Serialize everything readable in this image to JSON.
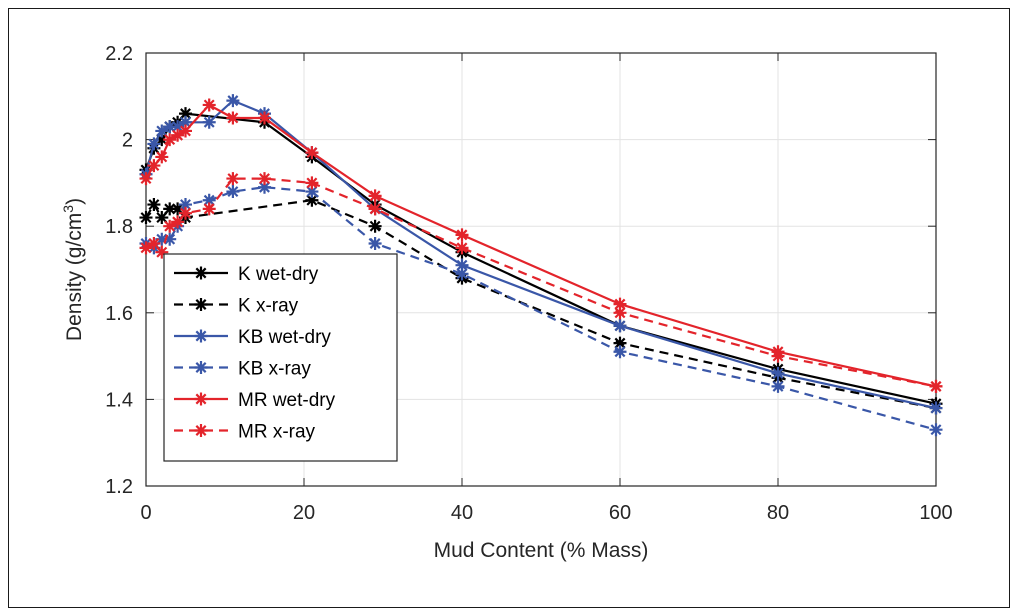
{
  "chart_data": {
    "type": "line",
    "title": "",
    "xlabel": "Mud Content (% Mass)",
    "ylabel": "Density (g/cm",
    "ylabel_sup": "3",
    "ylabel_close": ")",
    "xlim": [
      0,
      100
    ],
    "ylim": [
      1.2,
      2.2
    ],
    "xticks": [
      0,
      20,
      40,
      60,
      80,
      100
    ],
    "xtick_labels": [
      "0",
      "20",
      "40",
      "60",
      "80",
      "100"
    ],
    "yticks": [
      1.2,
      1.4,
      1.6,
      1.8,
      2.0,
      2.2
    ],
    "ytick_labels": [
      "1.2",
      "1.4",
      "1.6",
      "1.8",
      "2",
      "2.2"
    ],
    "grid": true,
    "legend_position": "lower-left",
    "series": [
      {
        "name": "K wet-dry",
        "color": "#000000",
        "dash": "solid",
        "x": [
          0,
          1,
          2,
          3,
          4,
          5,
          15,
          21,
          29,
          40,
          60,
          80,
          100
        ],
        "y": [
          1.93,
          1.98,
          2.0,
          2.03,
          2.04,
          2.06,
          2.04,
          1.96,
          1.85,
          1.74,
          1.57,
          1.47,
          1.39
        ]
      },
      {
        "name": "K x-ray",
        "color": "#000000",
        "dash": "dashed",
        "x": [
          0,
          1,
          2,
          3,
          4,
          5,
          21,
          29,
          40,
          60,
          80,
          100
        ],
        "y": [
          1.82,
          1.85,
          1.82,
          1.84,
          1.84,
          1.82,
          1.86,
          1.8,
          1.68,
          1.53,
          1.45,
          1.38
        ]
      },
      {
        "name": "KB wet-dry",
        "color": "#3a57a8",
        "dash": "solid",
        "x": [
          0,
          1,
          2,
          3,
          4,
          5,
          8,
          11,
          15,
          21,
          29,
          40,
          60,
          80,
          100
        ],
        "y": [
          1.92,
          1.99,
          2.02,
          2.03,
          2.03,
          2.04,
          2.04,
          2.09,
          2.06,
          1.97,
          1.84,
          1.71,
          1.57,
          1.46,
          1.38
        ]
      },
      {
        "name": "KB x-ray",
        "color": "#3a57a8",
        "dash": "dashed",
        "x": [
          0,
          1,
          2,
          3,
          4,
          5,
          8,
          11,
          15,
          21,
          29,
          40,
          60,
          80,
          100
        ],
        "y": [
          1.76,
          1.75,
          1.77,
          1.77,
          1.8,
          1.85,
          1.86,
          1.88,
          1.89,
          1.88,
          1.76,
          1.69,
          1.51,
          1.43,
          1.33
        ]
      },
      {
        "name": "MR wet-dry",
        "color": "#e3242b",
        "dash": "solid",
        "x": [
          0,
          1,
          2,
          3,
          4,
          5,
          8,
          11,
          15,
          21,
          29,
          40,
          60,
          80,
          100
        ],
        "y": [
          1.91,
          1.94,
          1.96,
          2.0,
          2.01,
          2.02,
          2.08,
          2.05,
          2.05,
          1.97,
          1.87,
          1.78,
          1.62,
          1.51,
          1.43
        ]
      },
      {
        "name": "MR x-ray",
        "color": "#e3242b",
        "dash": "dashed",
        "x": [
          0,
          1,
          2,
          3,
          4,
          5,
          8,
          11,
          15,
          21,
          29,
          40,
          60,
          80,
          100
        ],
        "y": [
          1.75,
          1.76,
          1.74,
          1.8,
          1.81,
          1.83,
          1.84,
          1.91,
          1.91,
          1.9,
          1.84,
          1.75,
          1.6,
          1.5,
          1.43
        ]
      }
    ]
  }
}
